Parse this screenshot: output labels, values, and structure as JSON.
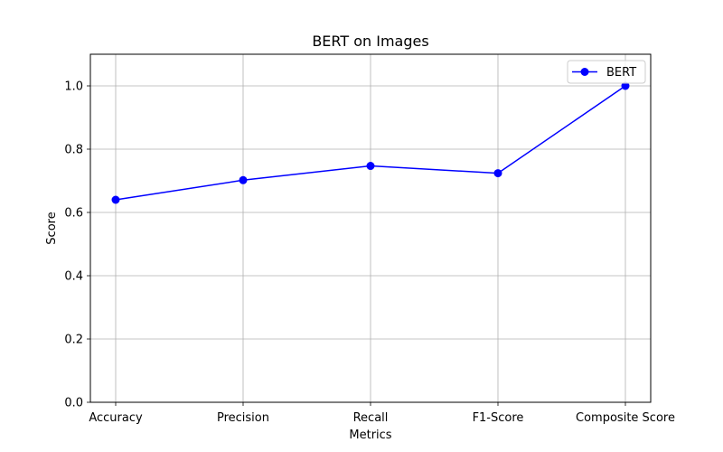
{
  "chart_data": {
    "type": "line",
    "title": "BERT on Images",
    "xlabel": "Metrics",
    "ylabel": "Score",
    "categories": [
      "Accuracy",
      "Precision",
      "Recall",
      "F1-Score",
      "Composite Score"
    ],
    "series": [
      {
        "name": "BERT",
        "color": "#0000ff",
        "marker": "circle",
        "values": [
          0.64,
          0.702,
          0.747,
          0.724,
          1.0
        ]
      }
    ],
    "ylim": [
      0,
      1.1
    ],
    "yticks": [
      "0.0",
      "0.2",
      "0.4",
      "0.6",
      "0.8",
      "1.0"
    ],
    "grid": true,
    "legend_position": "top-right"
  }
}
